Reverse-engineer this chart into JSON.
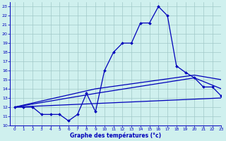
{
  "title": "Graphe des températures (°c)",
  "bg_color": "#cff0ee",
  "grid_color": "#a0c8c8",
  "line_color": "#0000bb",
  "xlim": [
    -0.5,
    23
  ],
  "ylim": [
    10,
    23.5
  ],
  "xticks": [
    0,
    1,
    2,
    3,
    4,
    5,
    6,
    7,
    8,
    9,
    10,
    11,
    12,
    13,
    14,
    15,
    16,
    17,
    18,
    19,
    20,
    21,
    22,
    23
  ],
  "yticks": [
    10,
    11,
    12,
    13,
    14,
    15,
    16,
    17,
    18,
    19,
    20,
    21,
    22,
    23
  ],
  "line_main": {
    "x": [
      0,
      1,
      2,
      3,
      4,
      5,
      6,
      7,
      8,
      9,
      10,
      11,
      12,
      13,
      14,
      15,
      16,
      17,
      18,
      19,
      20,
      21,
      22,
      23
    ],
    "y": [
      12,
      12,
      12,
      11.2,
      11.2,
      11.2,
      10.5,
      11.2,
      13.5,
      11.5,
      16,
      18,
      19,
      19,
      21.2,
      21.2,
      23,
      22,
      16.5,
      15.8,
      15.2,
      14.2,
      14.2,
      13.2
    ]
  },
  "line_a": {
    "x": [
      0,
      9,
      20,
      23
    ],
    "y": [
      12,
      13.5,
      15.2,
      14.0
    ]
  },
  "line_b": {
    "x": [
      0,
      23
    ],
    "y": [
      12,
      13.0
    ]
  },
  "line_c": {
    "x": [
      0,
      9,
      20,
      23
    ],
    "y": [
      12,
      14.0,
      15.5,
      15.0
    ]
  }
}
